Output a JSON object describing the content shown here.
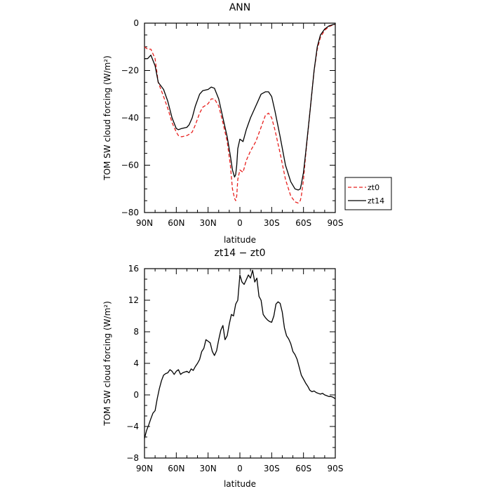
{
  "chart_data": [
    {
      "type": "line",
      "title": "ANN",
      "xlabel": "latitude",
      "ylabel": "TOM SW cloud forcing (W/m²)",
      "xlim": [
        90,
        -90
      ],
      "ylim": [
        -80,
        0
      ],
      "x_ticks": [
        90,
        60,
        30,
        0,
        -30,
        -60,
        -90
      ],
      "x_ticklabels": [
        "90N",
        "60N",
        "30N",
        "0",
        "30S",
        "60S",
        "90S"
      ],
      "y_ticks": [
        0,
        -20,
        -40,
        -60,
        -80
      ],
      "y_ticklabels": [
        "0",
        "−20",
        "−40",
        "−60",
        "−80"
      ],
      "legend": "right",
      "series": [
        {
          "name": "zt0",
          "color": "#e8201e",
          "dash": "dashed",
          "x": [
            90,
            87,
            84,
            80,
            77,
            72,
            68,
            64,
            60,
            58,
            55,
            50,
            48,
            45,
            42,
            38,
            35,
            30,
            27,
            24,
            20,
            16,
            12,
            9,
            7,
            5,
            4,
            3,
            2,
            0,
            -3,
            -6,
            -10,
            -15,
            -20,
            -24,
            -27,
            -30,
            -33,
            -38,
            -43,
            -48,
            -52,
            -55,
            -57,
            -58,
            -60,
            -62,
            -66,
            -70,
            -73,
            -76,
            -80,
            -84,
            -88,
            -90
          ],
          "y": [
            -10,
            -11,
            -11,
            -15,
            -25,
            -31,
            -36,
            -42,
            -46,
            -47.5,
            -48,
            -47.5,
            -47,
            -46,
            -43,
            -38,
            -35.5,
            -34,
            -32,
            -32,
            -35,
            -42,
            -50,
            -60,
            -70,
            -74,
            -75,
            -73,
            -66,
            -62,
            -63,
            -58,
            -54,
            -50,
            -44,
            -39,
            -38,
            -40,
            -45,
            -55,
            -66,
            -73,
            -75.5,
            -76,
            -75,
            -73,
            -66,
            -56,
            -38,
            -20,
            -11,
            -6,
            -3,
            -1.5,
            -0.7,
            -0.5
          ]
        },
        {
          "name": "zt14",
          "color": "#000000",
          "dash": "solid",
          "x": [
            90,
            87,
            84,
            80,
            77,
            72,
            68,
            64,
            60,
            58,
            55,
            50,
            48,
            45,
            42,
            38,
            35,
            30,
            27,
            24,
            20,
            16,
            12,
            9,
            7,
            5,
            4,
            3,
            2,
            0,
            -3,
            -6,
            -10,
            -15,
            -20,
            -24,
            -27,
            -30,
            -33,
            -38,
            -43,
            -48,
            -52,
            -55,
            -57,
            -58,
            -60,
            -62,
            -66,
            -70,
            -73,
            -76,
            -80,
            -84,
            -88,
            -90
          ],
          "y": [
            -15,
            -15,
            -13.5,
            -18,
            -25,
            -28,
            -33,
            -40,
            -44.5,
            -45,
            -44.5,
            -44,
            -43,
            -40,
            -35,
            -30,
            -28.5,
            -28,
            -27,
            -27.5,
            -32,
            -40,
            -48,
            -56,
            -62,
            -65,
            -64,
            -60,
            -53,
            -49,
            -50,
            -45,
            -40,
            -35,
            -30,
            -29,
            -29,
            -31,
            -37,
            -48,
            -60,
            -67,
            -70,
            -70.5,
            -70,
            -68,
            -63,
            -55,
            -38,
            -20,
            -10,
            -5,
            -2.5,
            -1.2,
            -0.6,
            -0.4
          ]
        }
      ]
    },
    {
      "type": "line",
      "title": "zt14 − zt0",
      "xlabel": "latitude",
      "ylabel": "TOM SW cloud forcing (W/m²)",
      "xlim": [
        90,
        -90
      ],
      "ylim": [
        -8,
        16
      ],
      "x_ticks": [
        90,
        60,
        30,
        0,
        -30,
        -60,
        -90
      ],
      "x_ticklabels": [
        "90N",
        "60N",
        "30N",
        "0",
        "30S",
        "60S",
        "90S"
      ],
      "y_ticks": [
        16,
        12,
        8,
        4,
        0,
        -4,
        -8
      ],
      "y_ticklabels": [
        "16",
        "12",
        "8",
        "4",
        "0",
        "−4",
        "−8"
      ],
      "series": [
        {
          "color": "#000000",
          "x": [
            90,
            88,
            86,
            84,
            82,
            80,
            78,
            76,
            74,
            72,
            70,
            68,
            66,
            64,
            62,
            60,
            58,
            56,
            54,
            52,
            50,
            48,
            46,
            44,
            42,
            40,
            38,
            36,
            34,
            32,
            30,
            28,
            26,
            24,
            22,
            20,
            18,
            16,
            14,
            12,
            10,
            8,
            6,
            4,
            2,
            0,
            -2,
            -4,
            -6,
            -8,
            -10,
            -12,
            -14,
            -16,
            -18,
            -20,
            -22,
            -24,
            -26,
            -28,
            -30,
            -32,
            -34,
            -36,
            -38,
            -40,
            -42,
            -44,
            -46,
            -48,
            -50,
            -52,
            -54,
            -56,
            -58,
            -60,
            -62,
            -64,
            -66,
            -68,
            -70,
            -72,
            -74,
            -76,
            -78,
            -80,
            -82,
            -84,
            -86,
            -88,
            -90
          ],
          "y": [
            -5.5,
            -4.5,
            -3.8,
            -3.0,
            -2.3,
            -2.0,
            -0.5,
            0.8,
            1.8,
            2.5,
            2.7,
            2.8,
            3.2,
            3.0,
            2.6,
            3.0,
            3.2,
            2.6,
            2.8,
            2.9,
            3.0,
            2.8,
            3.3,
            3.1,
            3.6,
            4.0,
            4.5,
            5.5,
            5.9,
            7.0,
            6.8,
            6.6,
            5.5,
            5.0,
            5.6,
            7.0,
            8.2,
            8.8,
            7.0,
            7.5,
            9.0,
            10.2,
            10.0,
            11.5,
            12.0,
            15.2,
            14.3,
            14.0,
            14.6,
            15.2,
            14.8,
            15.8,
            14.3,
            14.8,
            12.5,
            12.0,
            10.2,
            9.8,
            9.5,
            9.3,
            9.2,
            10.0,
            11.5,
            11.8,
            11.6,
            10.5,
            8.5,
            7.5,
            7.1,
            6.5,
            5.5,
            5.1,
            4.5,
            3.5,
            2.5,
            2.0,
            1.5,
            1.1,
            0.6,
            0.4,
            0.5,
            0.3,
            0.2,
            0.1,
            0.2,
            0.0,
            -0.1,
            -0.2,
            -0.2,
            -0.3,
            -0.5
          ]
        }
      ]
    }
  ]
}
